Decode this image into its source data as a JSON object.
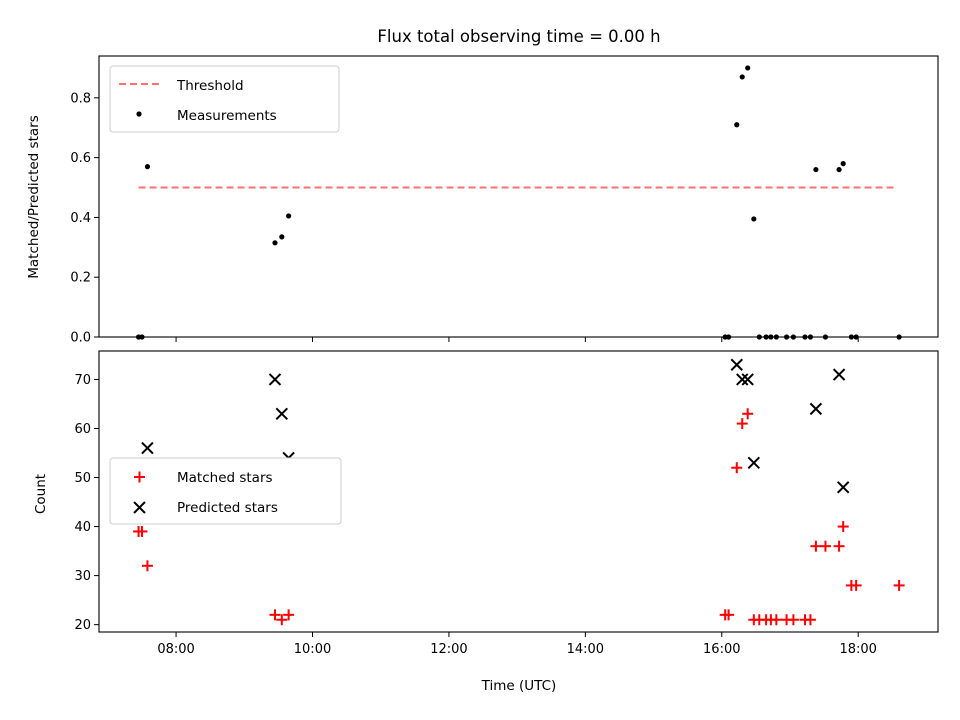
{
  "chart_data": [
    {
      "type": "scatter",
      "title": "Flux total observing time = 0.00 h",
      "xlabel": "",
      "ylabel": "Matched/Predicted stars",
      "xlim": [
        6.87,
        19.17
      ],
      "ylim": [
        0,
        0.94
      ],
      "x_ticks": [
        8,
        10,
        12,
        14,
        16,
        18
      ],
      "x_tick_labels": [
        "",
        "",
        "",
        "",
        "",
        ""
      ],
      "y_ticks": [
        0.0,
        0.2,
        0.4,
        0.6,
        0.8
      ],
      "y_tick_labels": [
        "0.0",
        "0.2",
        "0.4",
        "0.6",
        "0.8"
      ],
      "legend_position": "upper-left",
      "threshold": {
        "name": "Threshold",
        "y": 0.5,
        "x_start": 7.45,
        "x_end": 18.55,
        "color": "#ff7070"
      },
      "series": [
        {
          "name": "Measurements",
          "marker": "dot",
          "color": "#000000",
          "x": [
            7.45,
            7.5,
            7.58,
            9.45,
            9.55,
            9.65,
            16.05,
            16.1,
            16.22,
            16.3,
            16.38,
            16.47,
            16.55,
            16.65,
            16.72,
            16.8,
            16.95,
            17.05,
            17.22,
            17.3,
            17.38,
            17.52,
            17.72,
            17.78,
            17.9,
            17.97,
            18.6
          ],
          "y": [
            0,
            0,
            0.57,
            0.315,
            0.335,
            0.405,
            0,
            0,
            0.71,
            0.87,
            0.9,
            0.395,
            0,
            0,
            0,
            0,
            0,
            0,
            0,
            0,
            0.56,
            0,
            0.56,
            0.58,
            0,
            0,
            0
          ]
        }
      ]
    },
    {
      "type": "scatter",
      "title": "",
      "xlabel": "Time (UTC)",
      "ylabel": "Count",
      "xlim": [
        6.87,
        19.17
      ],
      "ylim": [
        18.5,
        75.8
      ],
      "x_ticks": [
        8,
        10,
        12,
        14,
        16,
        18
      ],
      "x_tick_labels": [
        "08:00",
        "10:00",
        "12:00",
        "14:00",
        "16:00",
        "18:00"
      ],
      "y_ticks": [
        20,
        30,
        40,
        50,
        60,
        70
      ],
      "y_tick_labels": [
        "20",
        "30",
        "40",
        "50",
        "60",
        "70"
      ],
      "legend_position": "center-left",
      "series": [
        {
          "name": "Matched stars",
          "marker": "plus",
          "color": "#ff0000",
          "x": [
            7.45,
            7.5,
            7.58,
            9.45,
            9.55,
            9.65,
            16.05,
            16.1,
            16.22,
            16.3,
            16.38,
            16.47,
            16.55,
            16.65,
            16.72,
            16.8,
            16.95,
            17.05,
            17.22,
            17.3,
            17.38,
            17.52,
            17.72,
            17.78,
            17.9,
            17.97,
            18.6
          ],
          "y": [
            39,
            39,
            32,
            22,
            21,
            22,
            22,
            22,
            52,
            61,
            63,
            21,
            21,
            21,
            21,
            21,
            21,
            21,
            21,
            21,
            36,
            36,
            36,
            40,
            28,
            28,
            28
          ]
        },
        {
          "name": "Predicted stars",
          "marker": "x",
          "color": "#000000",
          "x": [
            7.58,
            9.45,
            9.55,
            9.65,
            16.22,
            16.3,
            16.38,
            16.47,
            17.38,
            17.72,
            17.78
          ],
          "y": [
            56,
            70,
            63,
            54,
            73,
            70,
            70,
            53,
            64,
            71,
            48
          ]
        }
      ]
    }
  ]
}
